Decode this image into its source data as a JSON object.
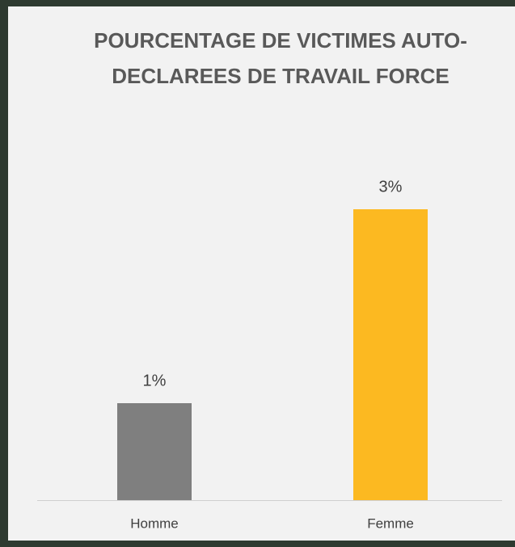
{
  "chart_data": {
    "type": "bar",
    "title": "POURCENTAGE DE VICTIMES AUTO-DECLAREES DE TRAVAIL FORCE",
    "categories": [
      "Homme",
      "Femme"
    ],
    "values": [
      1,
      3
    ],
    "value_labels": [
      "1%",
      "3%"
    ],
    "colors": [
      "#7f7f7f",
      "#fcb921"
    ]
  }
}
